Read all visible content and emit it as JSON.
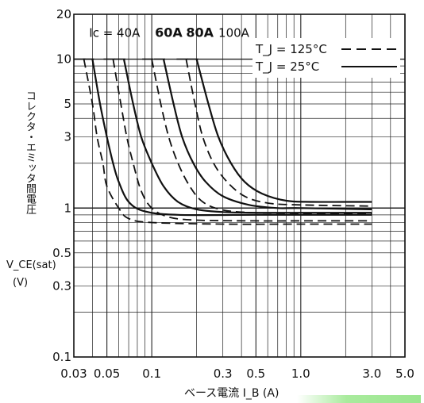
{
  "chart_data": {
    "type": "line",
    "x_scale": "log",
    "y_scale": "log",
    "xlim": [
      0.03,
      5.0
    ],
    "ylim": [
      0.1,
      20
    ],
    "grid": true,
    "xlabel": "ベース電流 I_B (A)",
    "ylabel": "コレクタ・エミッタ間電圧",
    "ylabel_symbol": "V_CE(sat)",
    "ylabel_unit": "(V)",
    "x_ticks": [
      {
        "value": 0.03,
        "label": "0.03"
      },
      {
        "value": 0.05,
        "label": "0.05"
      },
      {
        "value": 0.1,
        "label": "0.1"
      },
      {
        "value": 0.3,
        "label": "0.3"
      },
      {
        "value": 0.5,
        "label": "0.5"
      },
      {
        "value": 1.0,
        "label": "1.0"
      },
      {
        "value": 3.0,
        "label": "3.0"
      },
      {
        "value": 5.0,
        "label": "5.0"
      }
    ],
    "y_ticks": [
      {
        "value": 0.1,
        "label": "0.1"
      },
      {
        "value": 0.3,
        "label": "0.3"
      },
      {
        "value": 0.5,
        "label": "0.5"
      },
      {
        "value": 1,
        "label": "1"
      },
      {
        "value": 3,
        "label": "3"
      },
      {
        "value": 5,
        "label": "5"
      },
      {
        "value": 10,
        "label": "10"
      },
      {
        "value": 20,
        "label": "20"
      }
    ],
    "legend": {
      "placement": "top-right",
      "entries": [
        {
          "label": "T_J = 125°C",
          "style": "dashed"
        },
        {
          "label": "T_J = 25°C",
          "style": "solid"
        }
      ]
    },
    "curve_labels": [
      {
        "text": "Ic = 40A",
        "x": 0.038,
        "y": 15
      },
      {
        "text": "60A",
        "x": 0.105,
        "y": 15
      },
      {
        "text": "80A",
        "x": 0.17,
        "y": 15
      },
      {
        "text": "100A",
        "x": 0.28,
        "y": 15
      }
    ],
    "series": [
      {
        "ic": "40A",
        "tj": "25°C",
        "style": "solid",
        "points": [
          [
            0.04,
            10
          ],
          [
            0.045,
            5
          ],
          [
            0.05,
            3
          ],
          [
            0.055,
            2
          ],
          [
            0.06,
            1.5
          ],
          [
            0.07,
            1.1
          ],
          [
            0.09,
            0.95
          ],
          [
            0.15,
            0.9
          ],
          [
            0.5,
            0.9
          ],
          [
            1,
            0.9
          ],
          [
            3,
            0.9
          ]
        ]
      },
      {
        "ic": "40A",
        "tj": "125°C",
        "style": "dashed",
        "points": [
          [
            0.035,
            10
          ],
          [
            0.04,
            5
          ],
          [
            0.043,
            3
          ],
          [
            0.047,
            2
          ],
          [
            0.05,
            1.4
          ],
          [
            0.06,
            1
          ],
          [
            0.07,
            0.85
          ],
          [
            0.1,
            0.8
          ],
          [
            0.3,
            0.78
          ],
          [
            1,
            0.78
          ],
          [
            3,
            0.78
          ]
        ]
      },
      {
        "ic": "60A",
        "tj": "25°C",
        "style": "solid",
        "points": [
          [
            0.065,
            10
          ],
          [
            0.075,
            5
          ],
          [
            0.085,
            3
          ],
          [
            0.1,
            2
          ],
          [
            0.12,
            1.4
          ],
          [
            0.15,
            1.1
          ],
          [
            0.2,
            0.98
          ],
          [
            0.3,
            0.94
          ],
          [
            0.5,
            0.93
          ],
          [
            1,
            0.93
          ],
          [
            3,
            0.93
          ]
        ]
      },
      {
        "ic": "60A",
        "tj": "125°C",
        "style": "dashed",
        "points": [
          [
            0.055,
            10
          ],
          [
            0.062,
            5
          ],
          [
            0.068,
            3
          ],
          [
            0.075,
            2
          ],
          [
            0.085,
            1.3
          ],
          [
            0.1,
            1
          ],
          [
            0.13,
            0.87
          ],
          [
            0.2,
            0.83
          ],
          [
            0.5,
            0.82
          ],
          [
            1,
            0.82
          ],
          [
            3,
            0.82
          ]
        ]
      },
      {
        "ic": "80A",
        "tj": "25°C",
        "style": "solid",
        "points": [
          [
            0.12,
            10
          ],
          [
            0.14,
            5
          ],
          [
            0.16,
            3
          ],
          [
            0.19,
            2
          ],
          [
            0.23,
            1.5
          ],
          [
            0.3,
            1.2
          ],
          [
            0.45,
            1.05
          ],
          [
            0.7,
            1
          ],
          [
            1,
            1
          ],
          [
            3,
            0.98
          ]
        ]
      },
      {
        "ic": "80A",
        "tj": "125°C",
        "style": "dashed",
        "points": [
          [
            0.1,
            10
          ],
          [
            0.115,
            5
          ],
          [
            0.13,
            3
          ],
          [
            0.15,
            2
          ],
          [
            0.18,
            1.4
          ],
          [
            0.22,
            1.1
          ],
          [
            0.3,
            0.97
          ],
          [
            0.5,
            0.93
          ],
          [
            1,
            0.92
          ],
          [
            3,
            0.92
          ]
        ]
      },
      {
        "ic": "100A",
        "tj": "25°C",
        "style": "solid",
        "points": [
          [
            0.2,
            10
          ],
          [
            0.24,
            5
          ],
          [
            0.28,
            3
          ],
          [
            0.34,
            2
          ],
          [
            0.42,
            1.5
          ],
          [
            0.55,
            1.25
          ],
          [
            0.8,
            1.12
          ],
          [
            1.2,
            1.1
          ],
          [
            2,
            1.1
          ],
          [
            3,
            1.1
          ]
        ]
      },
      {
        "ic": "100A",
        "tj": "125°C",
        "style": "dashed",
        "points": [
          [
            0.17,
            10
          ],
          [
            0.195,
            5
          ],
          [
            0.22,
            3
          ],
          [
            0.26,
            2
          ],
          [
            0.32,
            1.5
          ],
          [
            0.42,
            1.2
          ],
          [
            0.6,
            1.08
          ],
          [
            1,
            1.05
          ],
          [
            3,
            1.03
          ]
        ]
      }
    ]
  }
}
